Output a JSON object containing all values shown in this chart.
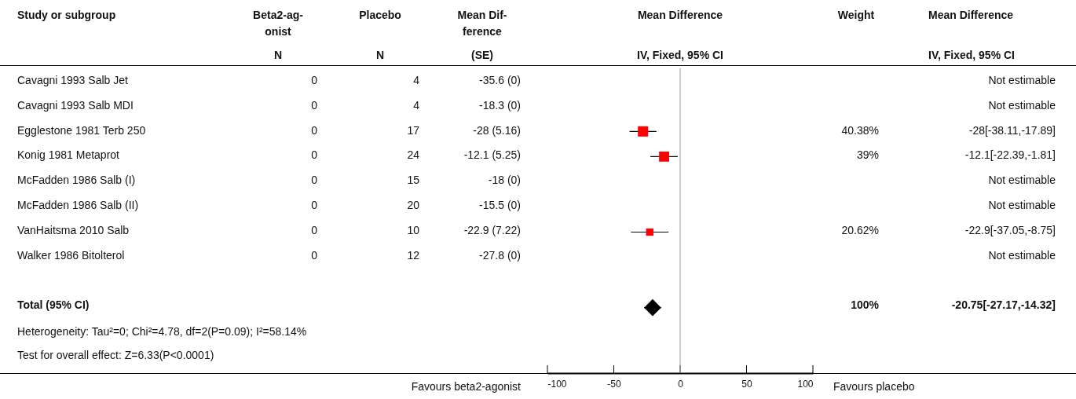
{
  "chart_data": [
    {
      "type": "other",
      "categories": [
        "Study or subgroup",
        "Beta2-ag-\nonist\nN",
        "Placebo\nN",
        "Mean Dif-\nference\n(SE)"
      ],
      "y_categories": [
        "Cavagni 1993 Salb Jet",
        "Cavagni 1993 Salb MDI",
        "Egglestone 1981 Terb 250",
        "Konig 1981 Metaprot",
        "McFadden 1986 Salb (I)",
        "McFadden 1986 Salb (II)",
        "VanHaitsma 2010 Salb",
        "Walker 1986 Bitolterol",
        "Total (95% CI)"
      ],
      "cell_labels": [
        [
          "0",
          "4",
          "-35.6 (0)"
        ],
        [
          "0",
          "4",
          "-18.3 (0)"
        ],
        [
          "0",
          "17",
          "-28 (5.16)"
        ],
        [
          "0",
          "24",
          "-12.1 (5.25)"
        ],
        [
          "0",
          "15",
          "-18 (0)"
        ],
        [
          "0",
          "20",
          "-15.5 (0)"
        ],
        [
          "0",
          "10",
          "-22.9 (7.22)"
        ],
        [
          "0",
          "12",
          "-27.8 (0)"
        ],
        [
          null,
          null,
          null
        ]
      ],
      "annotations": [
        "Heterogeneity: Tau²=0; Chi²=4.78, df=2(P=0.09); I²=58.14%",
        "Test for overall effect: Z=6.33(P<0.0001)"
      ]
    },
    {
      "type": "scatter",
      "title": "Mean Difference",
      "subtitle": "IV, Fixed, 95% CI",
      "orientation": "horizontal",
      "categories": [
        null,
        null,
        null,
        null,
        null,
        null,
        null,
        null,
        null,
        null,
        null,
        null
      ],
      "series": [
        {
          "type": "bubble",
          "color": "#ff0000",
          "marker": "square",
          "values": [
            null,
            null,
            -28,
            -12.1,
            null,
            null,
            -22.9,
            null,
            null,
            null,
            null,
            null
          ],
          "sizes": [
            null,
            null,
            1,
            0.966,
            null,
            null,
            0.511,
            null,
            null,
            null,
            null,
            null
          ],
          "errors": [
            null,
            null,
            [
              -38.11,
              -17.89
            ],
            [
              -22.39,
              -1.81
            ],
            null,
            null,
            [
              -37.05,
              -8.75
            ],
            null,
            null,
            null,
            null,
            null
          ]
        },
        {
          "color": "#000000",
          "marker": "diamond",
          "values": [
            null,
            null,
            null,
            null,
            null,
            null,
            null,
            null,
            null,
            -20.75,
            null,
            null
          ],
          "errors": [
            null,
            null,
            null,
            null,
            null,
            null,
            null,
            null,
            null,
            [
              -27.17,
              -14.32
            ],
            null,
            null
          ]
        }
      ],
      "xlim": [
        -100,
        100
      ],
      "xticks": [
        -100,
        -50,
        0,
        50,
        100
      ],
      "ref_lines": [
        {
          "axis": "x",
          "value": 0,
          "color": "#999999"
        }
      ],
      "annotations": [
        "Favours beta2-agonist",
        "Favours placebo"
      ]
    },
    {
      "type": "other",
      "categories": [
        "Weight",
        "Mean Difference\nIV, Fixed, 95% CI"
      ],
      "cell_labels": [
        [
          null,
          "Not estimable"
        ],
        [
          null,
          "Not estimable"
        ],
        [
          "40.38%",
          "-28[-38.11,-17.89]"
        ],
        [
          "39%",
          "-12.1[-22.39,-1.81]"
        ],
        [
          null,
          "Not estimable"
        ],
        [
          null,
          "Not estimable"
        ],
        [
          "20.62%",
          "-22.9[-37.05,-8.75]"
        ],
        [
          null,
          "Not estimable"
        ],
        [
          "100%",
          "-20.75[-27.17,-14.32]"
        ]
      ]
    }
  ]
}
